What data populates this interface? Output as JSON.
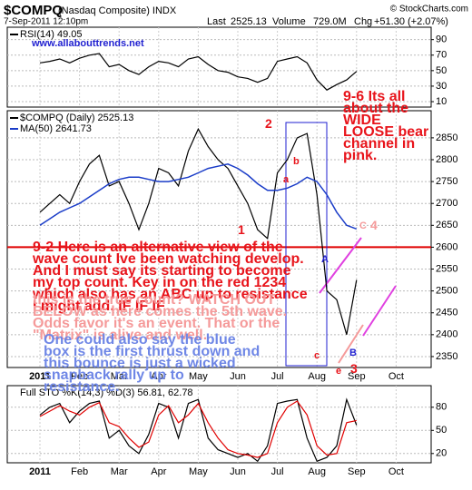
{
  "header": {
    "symbol": "$COMPQ",
    "name": "(Nasdaq Composite) INDX",
    "source": "© StockCharts.com",
    "date": "7-Sep-2011 12:10pm",
    "last_label": "Last",
    "last": "2525.13",
    "volume_label": "Volume",
    "volume": "729.0M",
    "chg_label": "Chg",
    "chg": "+51.30 (+2.07%)"
  },
  "chart_data": [
    {
      "type": "line",
      "ylim": [
        3,
        106
      ],
      "yticks": [
        10,
        30,
        50,
        70,
        90
      ],
      "series": [
        {
          "name": "RSI(14) 49.05",
          "color": "#000000",
          "values": [
            60,
            62,
            65,
            60,
            66,
            70,
            72,
            55,
            58,
            50,
            45,
            55,
            62,
            60,
            55,
            65,
            68,
            58,
            50,
            48,
            42,
            40,
            35,
            40,
            62,
            65,
            68,
            60,
            38,
            25,
            32,
            38,
            49.05,
            null,
            null,
            null,
            null
          ]
        }
      ],
      "annotations": [
        {
          "text": "www.allabouttrends.net",
          "color": "#1f1fd0"
        }
      ]
    },
    {
      "type": "line",
      "ylim": [
        2325,
        2912
      ],
      "yticks": [
        2350,
        2400,
        2450,
        2500,
        2550,
        2600,
        2650,
        2700,
        2750,
        2800,
        2850
      ],
      "categories": [
        "2011",
        null,
        null,
        null,
        "Feb",
        null,
        null,
        null,
        "Mar",
        null,
        null,
        null,
        "Apr",
        null,
        null,
        null,
        "May",
        null,
        null,
        null,
        "Jun",
        null,
        null,
        null,
        "Jul",
        null,
        null,
        null,
        "Aug",
        null,
        null,
        null,
        "Sep",
        null,
        null,
        null,
        "Oct"
      ],
      "series": [
        {
          "name": "$COMPQ (Daily) 2525.13",
          "color": "#000000",
          "values": [
            2680,
            2700,
            2720,
            2700,
            2750,
            2790,
            2810,
            2740,
            2750,
            2700,
            2640,
            2700,
            2780,
            2770,
            2740,
            2820,
            2870,
            2830,
            2800,
            2780,
            2740,
            2700,
            2640,
            2620,
            2770,
            2800,
            2850,
            2860,
            2720,
            2500,
            2480,
            2400,
            2525.13,
            null,
            null,
            null,
            null
          ]
        },
        {
          "name": "MA(50) 2641.73",
          "color": "#1a3cc8",
          "values": [
            2650,
            2665,
            2680,
            2690,
            2700,
            2715,
            2730,
            2745,
            2755,
            2760,
            2760,
            2755,
            2750,
            2750,
            2755,
            2760,
            2770,
            2780,
            2785,
            2790,
            2780,
            2765,
            2745,
            2730,
            2730,
            2735,
            2745,
            2760,
            2750,
            2720,
            2680,
            2650,
            2641.73,
            null,
            null,
            null,
            null
          ]
        }
      ],
      "hline": {
        "value": 2600,
        "color": "#e00000"
      },
      "annotations": [
        {
          "text": "9-6 Its all about the WIDE LOOSE bear channel in pink.",
          "color": "#e8141b"
        },
        {
          "text": "9-2 Here is an alternative view of the wave count Ive been watching develop. And I must say its starting to become my top count. Key in on the red 1234 which also has an ABC up to resistance I might add. IF IF IF",
          "color": "#e8141b"
        },
        {
          "text": "this is the true count? WATCH OUT BELOW as here comes the 5th wave. Odds favor  it's an event. That or the \"Matrix\" is alive and well.",
          "color": "#f59a9a"
        },
        {
          "text": "One could also say the blue box is the first thrust down and this bounce is just a wicked snapback rally up to resistance.",
          "color": "#6f87e6"
        },
        {
          "text": "1",
          "color": "#e8141b"
        },
        {
          "text": "2",
          "color": "#e8141b"
        },
        {
          "text": "3",
          "color": "#e8141b"
        },
        {
          "text": "4",
          "color": "#f59a9a"
        },
        {
          "text": "a",
          "color": "#e8141b"
        },
        {
          "text": "b",
          "color": "#e8141b"
        },
        {
          "text": "c",
          "color": "#e8141b"
        },
        {
          "text": "e",
          "color": "#e8141b"
        },
        {
          "text": "A",
          "color": "#1f1fd0"
        },
        {
          "text": "B",
          "color": "#1f1fd0"
        },
        {
          "text": "C",
          "color": "#f59a9a"
        }
      ]
    },
    {
      "type": "line",
      "title": "Full STO %K(14,3) %D(3) 56.81, 62.78",
      "ylim": [
        8,
        108
      ],
      "yticks": [
        20,
        50,
        80
      ],
      "categories": [
        "2011",
        null,
        null,
        null,
        "Feb",
        null,
        null,
        null,
        "Mar",
        null,
        null,
        null,
        "Apr",
        null,
        null,
        null,
        "May",
        null,
        null,
        null,
        "Jun",
        null,
        null,
        null,
        "Jul",
        null,
        null,
        null,
        "Aug",
        null,
        null,
        null,
        "Sep",
        null,
        null,
        null,
        "Oct"
      ],
      "series": [
        {
          "color": "#000000",
          "values": [
            70,
            80,
            85,
            60,
            75,
            85,
            88,
            40,
            50,
            30,
            20,
            45,
            85,
            80,
            40,
            85,
            90,
            40,
            25,
            20,
            15,
            20,
            10,
            30,
            85,
            88,
            90,
            40,
            10,
            15,
            30,
            90,
            56.81,
            null,
            null,
            null,
            null
          ]
        },
        {
          "color": "#e00000",
          "values": [
            68,
            75,
            82,
            75,
            70,
            80,
            86,
            60,
            55,
            40,
            28,
            35,
            70,
            82,
            60,
            70,
            85,
            60,
            40,
            25,
            20,
            18,
            15,
            20,
            60,
            80,
            88,
            70,
            30,
            18,
            20,
            60,
            62.78,
            null,
            null,
            null,
            null
          ]
        }
      ]
    }
  ]
}
